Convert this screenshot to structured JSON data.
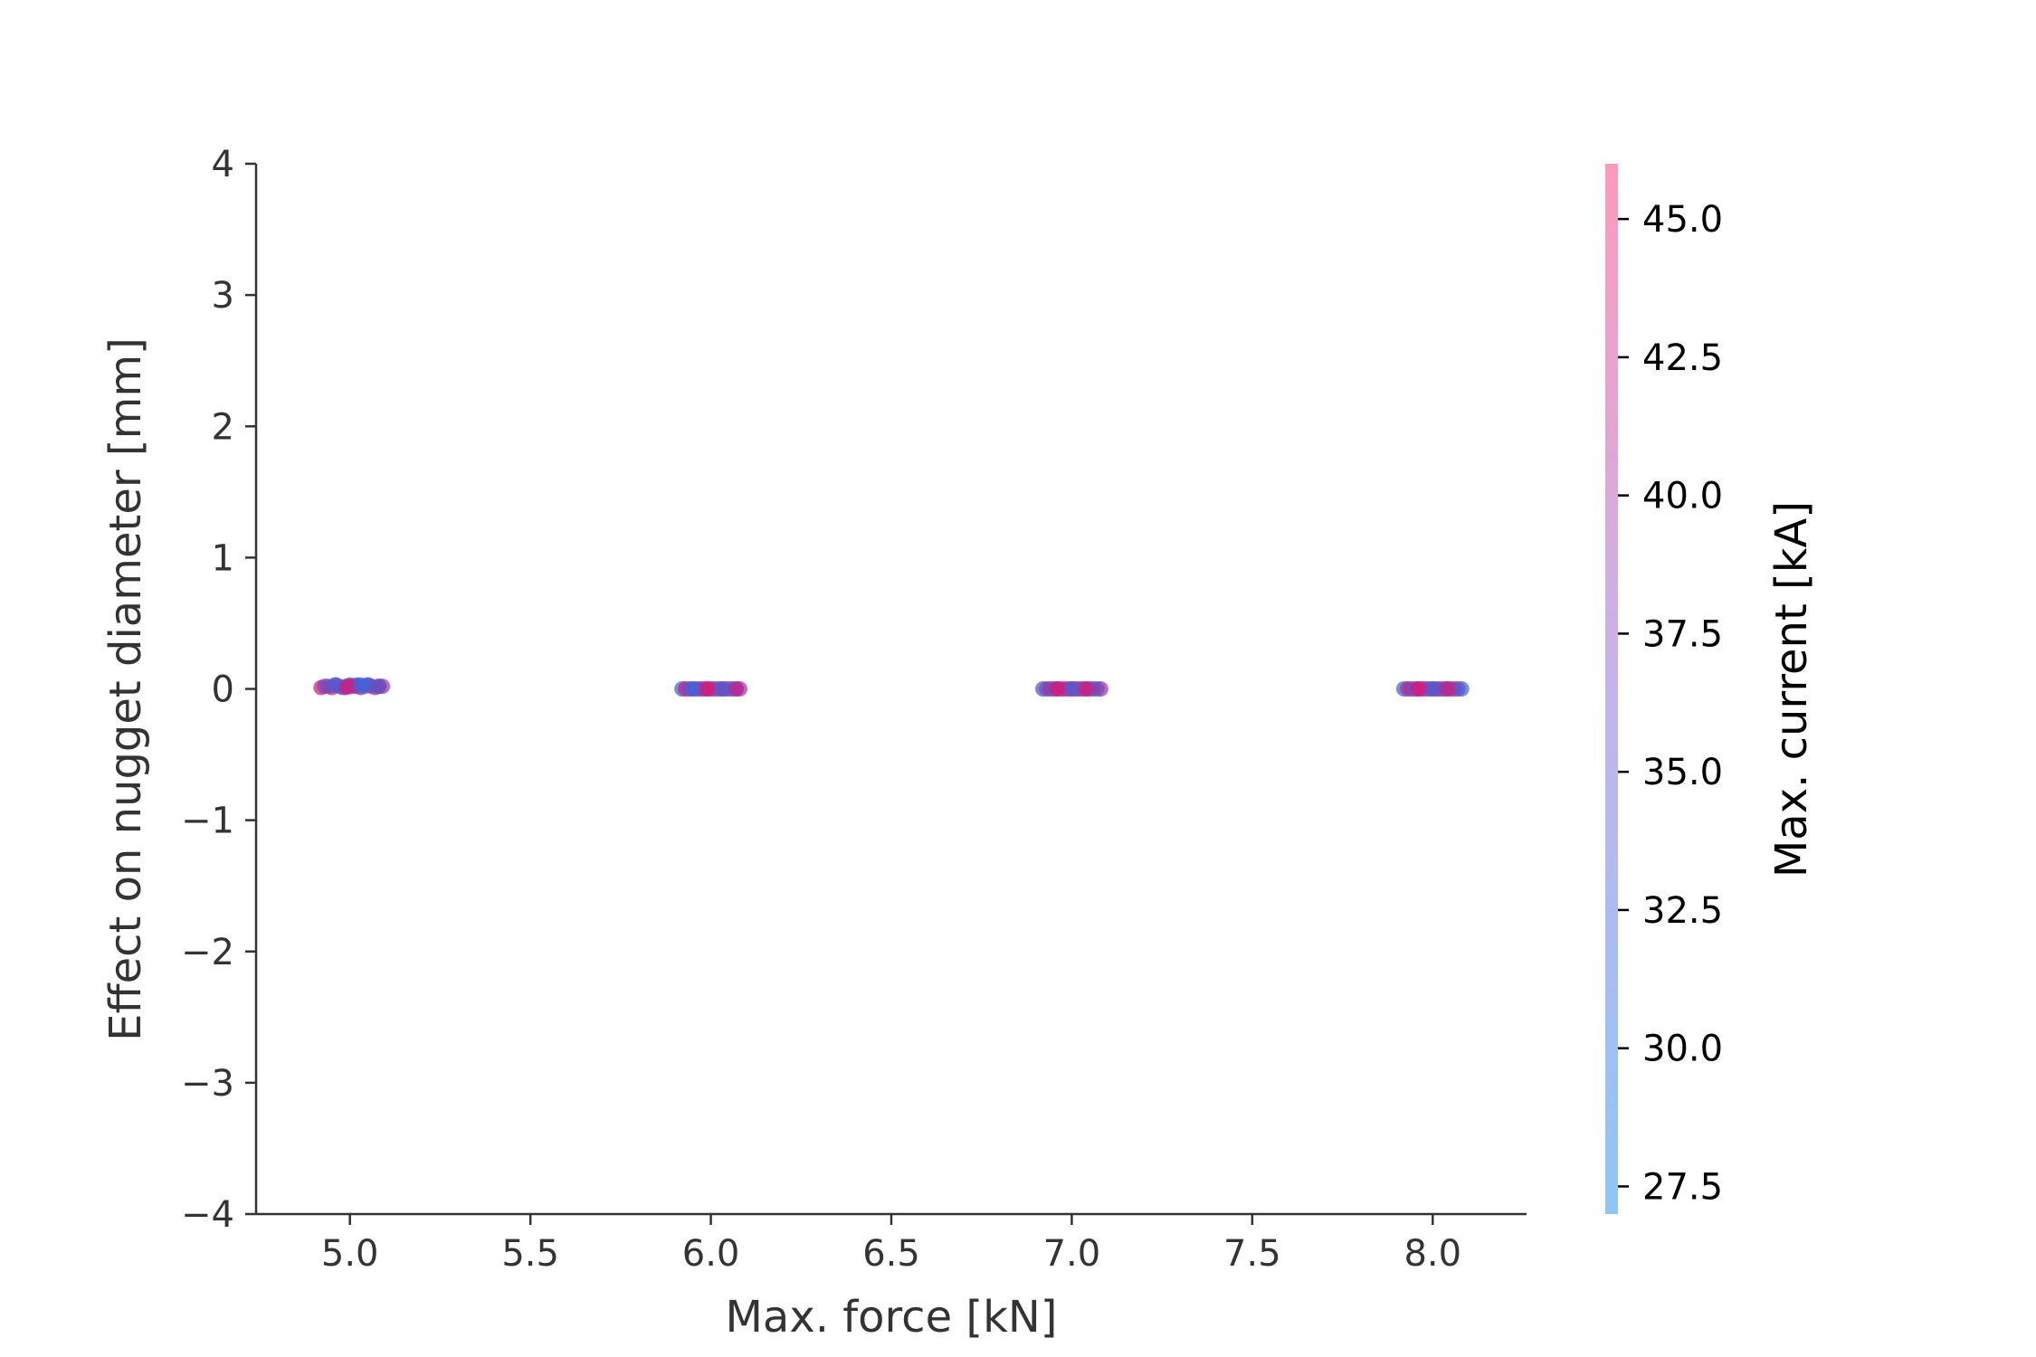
{
  "chart_data": {
    "type": "scatter",
    "title": "",
    "xlabel": "Max. force [kN]",
    "ylabel": "Effect on nugget diameter [mm]",
    "xlim": [
      4.74,
      8.26
    ],
    "ylim": [
      -4,
      4
    ],
    "xticks": [
      5.0,
      5.5,
      6.0,
      6.5,
      7.0,
      7.5,
      8.0
    ],
    "xtick_labels": [
      "5.0",
      "5.5",
      "6.0",
      "6.5",
      "7.0",
      "7.5",
      "8.0"
    ],
    "yticks": [
      4,
      3,
      2,
      1,
      0,
      -1,
      -2,
      -3,
      -4
    ],
    "ytick_labels": [
      "4",
      "3",
      "2",
      "1",
      "0",
      "−1",
      "−2",
      "−3",
      "−4"
    ],
    "grid": false,
    "colorbar": {
      "label": "Max. current [kA]",
      "range": [
        27.0,
        46.0
      ],
      "ticks": [
        45.0,
        42.5,
        40.0,
        37.5,
        35.0,
        32.5,
        30.0,
        27.5
      ],
      "tick_labels": [
        "45.0",
        "42.5",
        "40.0",
        "37.5",
        "35.0",
        "32.5",
        "30.0",
        "27.5"
      ],
      "color_low": "#8ec6f5",
      "color_high": "#ff99bb"
    },
    "point_colors": {
      "low": "#2d6ee8",
      "high": "#e8126e"
    },
    "series": [
      {
        "x": [
          4.92,
          4.94,
          4.95,
          4.96,
          4.97,
          4.98,
          4.99,
          5.0,
          5.01,
          5.02,
          5.03,
          5.04,
          5.05,
          5.06,
          5.07,
          5.08,
          5.09,
          4.93,
          4.96,
          4.99,
          5.02,
          5.05,
          5.08,
          5.0,
          5.03
        ],
        "y": [
          0.01,
          0.02,
          0.01,
          0.03,
          0.02,
          0.01,
          0.02,
          0.03,
          0.02,
          0.03,
          0.01,
          0.02,
          0.03,
          0.02,
          0.01,
          0.02,
          0.02,
          0.02,
          0.03,
          0.01,
          0.02,
          0.03,
          0.02,
          0.02,
          0.03
        ],
        "current": [
          44,
          30,
          42,
          33,
          45,
          29,
          40,
          31,
          43,
          30,
          41,
          32,
          28,
          44,
          36,
          30,
          38,
          35,
          29,
          44,
          31,
          30,
          33,
          42,
          29
        ]
      },
      {
        "x": [
          5.92,
          5.93,
          5.94,
          5.95,
          5.96,
          5.97,
          5.98,
          5.99,
          6.0,
          6.01,
          6.02,
          6.03,
          6.04,
          6.05,
          6.06,
          6.07,
          6.08,
          5.95,
          5.99,
          6.03,
          6.07
        ],
        "y": [
          0.0,
          0.0,
          0.0,
          0.0,
          0.0,
          0.0,
          0.0,
          0.0,
          0.0,
          0.0,
          0.0,
          0.0,
          0.0,
          0.0,
          0.0,
          0.0,
          0.0,
          0.0,
          0.0,
          0.0,
          0.0
        ],
        "current": [
          30,
          44,
          33,
          41,
          29,
          45,
          36,
          42,
          31,
          43,
          30,
          40,
          34,
          44,
          29,
          32,
          38,
          28,
          45,
          31,
          42
        ]
      },
      {
        "x": [
          6.92,
          6.93,
          6.94,
          6.95,
          6.96,
          6.97,
          6.98,
          6.99,
          7.0,
          7.01,
          7.02,
          7.03,
          7.04,
          7.05,
          7.06,
          7.07,
          7.08,
          6.96,
          7.0,
          7.04
        ],
        "y": [
          0.0,
          0.0,
          0.0,
          0.0,
          0.0,
          0.0,
          0.0,
          0.0,
          0.0,
          0.0,
          0.0,
          0.0,
          0.0,
          0.0,
          0.0,
          0.0,
          0.0,
          0.0,
          0.0,
          0.0
        ],
        "current": [
          34,
          30,
          43,
          31,
          41,
          29,
          44,
          36,
          42,
          30,
          45,
          33,
          40,
          44,
          32,
          29,
          38,
          45,
          31,
          43
        ]
      },
      {
        "x": [
          7.92,
          7.93,
          7.94,
          7.95,
          7.96,
          7.97,
          7.98,
          7.99,
          8.0,
          8.01,
          8.02,
          8.03,
          8.04,
          8.05,
          8.06,
          8.07,
          8.08,
          7.96,
          8.0,
          8.04
        ],
        "y": [
          0.0,
          0.0,
          0.0,
          0.0,
          0.0,
          0.0,
          0.0,
          0.0,
          0.0,
          0.0,
          0.0,
          0.0,
          0.0,
          0.0,
          0.0,
          0.0,
          0.0,
          0.0,
          0.0,
          0.0
        ],
        "current": [
          31,
          36,
          44,
          30,
          42,
          33,
          45,
          29,
          41,
          31,
          43,
          35,
          30,
          44,
          32,
          40,
          29,
          45,
          31,
          42
        ]
      }
    ]
  }
}
